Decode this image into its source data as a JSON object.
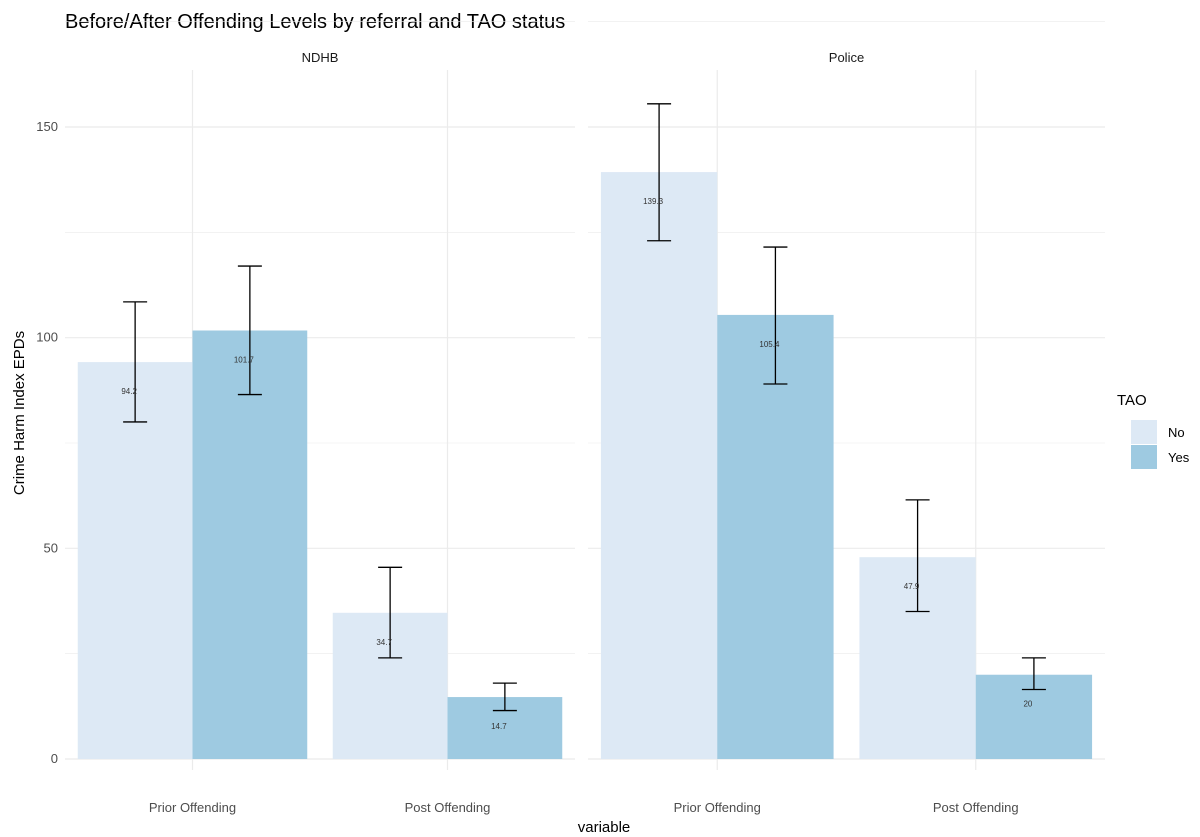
{
  "title": "Before/After Offending Levels by referral and TAO status",
  "colors": {
    "No": "#dde9f5",
    "Yes": "#9ecae1",
    "grid": "#ebebeb",
    "errorbar": "#000000"
  },
  "legend": {
    "title": "TAO",
    "position": "right",
    "items": [
      {
        "label": "No",
        "color": "#dde9f5"
      },
      {
        "label": "Yes",
        "color": "#9ecae1"
      }
    ]
  },
  "chart_data": {
    "type": "bar",
    "title": "Before/After Offending Levels by referral and TAO status",
    "xlabel": "variable",
    "ylabel": "Crime Harm Index EPDs",
    "ylim": [
      0,
      160
    ],
    "yticks": [
      0,
      50,
      100,
      150
    ],
    "grid": true,
    "categories": [
      "Prior Offending",
      "Post Offending"
    ],
    "facets": [
      {
        "name": "NDHB",
        "series": [
          {
            "name": "No",
            "values": [
              94.2,
              34.7
            ],
            "labels": [
              "94.2",
              "34.7"
            ],
            "error_low": [
              80,
              24
            ],
            "error_high": [
              108.5,
              45.5
            ]
          },
          {
            "name": "Yes",
            "values": [
              101.7,
              14.7
            ],
            "labels": [
              "101.7",
              "14.7"
            ],
            "error_low": [
              86.5,
              11.5
            ],
            "error_high": [
              117,
              18
            ]
          }
        ]
      },
      {
        "name": "Police",
        "series": [
          {
            "name": "No",
            "values": [
              139.3,
              47.9
            ],
            "labels": [
              "139.3",
              "47.9"
            ],
            "error_low": [
              123,
              35
            ],
            "error_high": [
              155.5,
              61.5
            ]
          },
          {
            "name": "Yes",
            "values": [
              105.4,
              20
            ],
            "labels": [
              "105.4",
              "20"
            ],
            "error_low": [
              89,
              16.5
            ],
            "error_high": [
              121.5,
              24
            ]
          }
        ]
      }
    ]
  }
}
